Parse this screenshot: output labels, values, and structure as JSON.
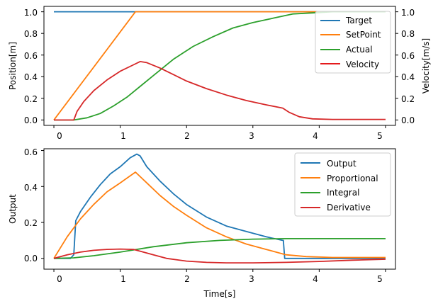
{
  "chart_data": [
    {
      "type": "line",
      "ylabel": "Position[m]",
      "y2label": "Velocity[m/s]",
      "xlabel": "",
      "xlim": [
        -0.15,
        5.15
      ],
      "ylim": [
        -0.05,
        1.05
      ],
      "y2lim": [
        -0.05,
        1.05
      ],
      "xticks": [
        "0",
        "1",
        "2",
        "3",
        "4",
        "5"
      ],
      "yticks": [
        "0.0",
        "0.2",
        "0.4",
        "0.6",
        "0.8",
        "1.0"
      ],
      "y2ticks": [
        "0.0",
        "0.2",
        "0.4",
        "0.6",
        "0.8",
        "1.0"
      ],
      "legend_position": "top-right",
      "grid": false,
      "series": [
        {
          "name": "Target",
          "color": "#1f77b4",
          "axis": "left",
          "x": [
            0,
            5
          ],
          "y": [
            1.0,
            1.0
          ]
        },
        {
          "name": "SetPoint",
          "color": "#ff7f0e",
          "axis": "left",
          "x": [
            0,
            1.23,
            5
          ],
          "y": [
            0.0,
            1.0,
            1.0
          ]
        },
        {
          "name": "Actual",
          "color": "#2ca02c",
          "axis": "left",
          "x": [
            0,
            0.3,
            0.5,
            0.7,
            0.9,
            1.1,
            1.3,
            1.5,
            1.8,
            2.1,
            2.4,
            2.7,
            3.0,
            3.3,
            3.6,
            3.9,
            4.2,
            5.0
          ],
          "y": [
            0.0,
            0.0,
            0.02,
            0.06,
            0.13,
            0.21,
            0.31,
            0.41,
            0.56,
            0.68,
            0.77,
            0.85,
            0.9,
            0.94,
            0.98,
            0.99,
            1.0,
            1.0
          ]
        },
        {
          "name": "Velocity",
          "color": "#d62728",
          "axis": "right",
          "x": [
            0,
            0.3,
            0.35,
            0.45,
            0.6,
            0.8,
            1.0,
            1.2,
            1.3,
            1.4,
            1.6,
            1.8,
            2.0,
            2.3,
            2.6,
            2.9,
            3.2,
            3.45,
            3.55,
            3.7,
            3.9,
            4.2,
            5.0
          ],
          "y": [
            0.0,
            0.0,
            0.08,
            0.17,
            0.27,
            0.37,
            0.45,
            0.51,
            0.54,
            0.53,
            0.48,
            0.42,
            0.36,
            0.29,
            0.23,
            0.18,
            0.14,
            0.11,
            0.07,
            0.03,
            0.01,
            0.005,
            0.005
          ]
        }
      ]
    },
    {
      "type": "line",
      "ylabel": "Output",
      "xlabel": "Time[s]",
      "xlim": [
        -0.15,
        5.15
      ],
      "ylim": [
        -0.06,
        0.61
      ],
      "xticks": [
        "0",
        "1",
        "2",
        "3",
        "4",
        "5"
      ],
      "yticks": [
        "0.0",
        "0.2",
        "0.4",
        "0.6"
      ],
      "legend_position": "top-right",
      "grid": false,
      "series": [
        {
          "name": "Output",
          "color": "#1f77b4",
          "x": [
            0,
            0.25,
            0.3,
            0.33,
            0.4,
            0.55,
            0.7,
            0.85,
            1.0,
            1.15,
            1.25,
            1.3,
            1.4,
            1.6,
            1.8,
            2.0,
            2.3,
            2.6,
            2.9,
            3.2,
            3.45,
            3.46,
            3.48,
            5.0
          ],
          "y": [
            0.0,
            0.0,
            0.02,
            0.21,
            0.26,
            0.34,
            0.41,
            0.47,
            0.51,
            0.56,
            0.58,
            0.57,
            0.51,
            0.43,
            0.36,
            0.3,
            0.23,
            0.18,
            0.15,
            0.12,
            0.1,
            0.1,
            0.0,
            0.0
          ]
        },
        {
          "name": "Proportional",
          "color": "#ff7f0e",
          "x": [
            0,
            0.2,
            0.4,
            0.6,
            0.8,
            1.0,
            1.23,
            1.4,
            1.6,
            1.8,
            2.0,
            2.3,
            2.6,
            2.9,
            3.2,
            3.5,
            3.8,
            4.2,
            5.0
          ],
          "y": [
            0.0,
            0.12,
            0.22,
            0.3,
            0.37,
            0.42,
            0.48,
            0.42,
            0.35,
            0.29,
            0.24,
            0.17,
            0.12,
            0.08,
            0.05,
            0.02,
            0.01,
            0.005,
            0.005
          ]
        },
        {
          "name": "Integral",
          "color": "#2ca02c",
          "x": [
            0,
            0.3,
            0.6,
            1.0,
            1.5,
            2.0,
            2.5,
            3.0,
            3.5,
            4.0,
            5.0
          ],
          "y": [
            0.0,
            0.003,
            0.015,
            0.035,
            0.065,
            0.087,
            0.1,
            0.107,
            0.11,
            0.11,
            0.11
          ]
        },
        {
          "name": "Derivative",
          "color": "#d62728",
          "x": [
            0,
            0.2,
            0.4,
            0.6,
            0.8,
            1.0,
            1.2,
            1.3,
            1.5,
            1.7,
            2.0,
            2.3,
            2.6,
            3.0,
            3.5,
            4.0,
            4.5,
            5.0
          ],
          "y": [
            0.0,
            0.02,
            0.035,
            0.045,
            0.05,
            0.052,
            0.05,
            0.04,
            0.02,
            0.0,
            -0.015,
            -0.022,
            -0.025,
            -0.025,
            -0.022,
            -0.017,
            -0.01,
            -0.005
          ]
        }
      ]
    }
  ]
}
